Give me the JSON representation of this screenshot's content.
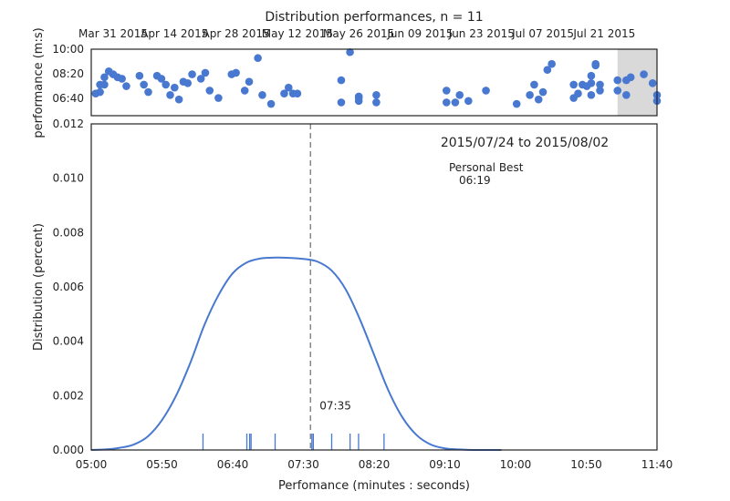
{
  "figure": {
    "title": "Distribution performances, n = 11",
    "colors": {
      "accent": "#4878cf",
      "highlight": "#d9d9d9",
      "median_line": "#808080",
      "axes": "#222222"
    }
  },
  "chart_data": [
    {
      "type": "scatter",
      "ylabel": "performance (m:s)",
      "x_tick_labels": [
        "Mar 31 2015",
        "Apr 14 2015",
        "Apr 28 2015",
        "May 12 2015",
        "May 26 2015",
        "Jun 09 2015",
        "Jun 23 2015",
        "Jul 07 2015",
        "Jul 21 2015"
      ],
      "x_ticks": [
        "2015-03-31",
        "2015-04-14",
        "2015-04-28",
        "2015-05-12",
        "2015-05-26",
        "2015-06-09",
        "2015-06-23",
        "2015-07-07",
        "2015-07-21"
      ],
      "y_tick_labels": [
        "06:40",
        "08:20",
        "10:00"
      ],
      "y_ticks": [
        6.667,
        8.333,
        10.0
      ],
      "xlim": [
        "2015-03-26",
        "2015-08-02"
      ],
      "ylim": [
        5.5,
        10.0
      ],
      "highlight_range": [
        "2015-07-24",
        "2015-08-02"
      ],
      "points": [
        {
          "x": "2015-03-27",
          "y": 7.0
        },
        {
          "x": "2015-03-28",
          "y": 7.1
        },
        {
          "x": "2015-03-29",
          "y": 8.1
        },
        {
          "x": "2015-03-28",
          "y": 7.6
        },
        {
          "x": "2015-03-29",
          "y": 7.6
        },
        {
          "x": "2015-03-30",
          "y": 8.5
        },
        {
          "x": "2015-03-31",
          "y": 8.3
        },
        {
          "x": "2015-04-01",
          "y": 8.1
        },
        {
          "x": "2015-04-02",
          "y": 8.0
        },
        {
          "x": "2015-04-03",
          "y": 7.5
        },
        {
          "x": "2015-04-06",
          "y": 8.2
        },
        {
          "x": "2015-04-07",
          "y": 7.6
        },
        {
          "x": "2015-04-08",
          "y": 7.1
        },
        {
          "x": "2015-04-10",
          "y": 8.2
        },
        {
          "x": "2015-04-11",
          "y": 8.0
        },
        {
          "x": "2015-04-12",
          "y": 7.6
        },
        {
          "x": "2015-04-13",
          "y": 6.9
        },
        {
          "x": "2015-04-14",
          "y": 7.4
        },
        {
          "x": "2015-04-15",
          "y": 6.6
        },
        {
          "x": "2015-04-16",
          "y": 7.8
        },
        {
          "x": "2015-04-17",
          "y": 7.7
        },
        {
          "x": "2015-04-18",
          "y": 8.3
        },
        {
          "x": "2015-04-20",
          "y": 8.0
        },
        {
          "x": "2015-04-22",
          "y": 7.2
        },
        {
          "x": "2015-04-21",
          "y": 8.4
        },
        {
          "x": "2015-04-24",
          "y": 6.7
        },
        {
          "x": "2015-04-27",
          "y": 8.3
        },
        {
          "x": "2015-04-28",
          "y": 8.4
        },
        {
          "x": "2015-04-30",
          "y": 7.2
        },
        {
          "x": "2015-05-01",
          "y": 7.8
        },
        {
          "x": "2015-05-03",
          "y": 9.4
        },
        {
          "x": "2015-05-04",
          "y": 6.9
        },
        {
          "x": "2015-05-06",
          "y": 6.3
        },
        {
          "x": "2015-05-09",
          "y": 7.0
        },
        {
          "x": "2015-05-10",
          "y": 7.4
        },
        {
          "x": "2015-05-11",
          "y": 7.0
        },
        {
          "x": "2015-05-12",
          "y": 7.0
        },
        {
          "x": "2015-05-22",
          "y": 7.9
        },
        {
          "x": "2015-05-22",
          "y": 6.4
        },
        {
          "x": "2015-05-24",
          "y": 9.8
        },
        {
          "x": "2015-05-26",
          "y": 6.5
        },
        {
          "x": "2015-05-26",
          "y": 6.8
        },
        {
          "x": "2015-05-26",
          "y": 6.7
        },
        {
          "x": "2015-05-30",
          "y": 6.9
        },
        {
          "x": "2015-05-30",
          "y": 6.4
        },
        {
          "x": "2015-06-15",
          "y": 7.2
        },
        {
          "x": "2015-06-15",
          "y": 6.4
        },
        {
          "x": "2015-06-17",
          "y": 6.4
        },
        {
          "x": "2015-06-18",
          "y": 6.9
        },
        {
          "x": "2015-06-20",
          "y": 6.5
        },
        {
          "x": "2015-06-24",
          "y": 7.2
        },
        {
          "x": "2015-07-01",
          "y": 6.3
        },
        {
          "x": "2015-07-04",
          "y": 6.9
        },
        {
          "x": "2015-07-05",
          "y": 7.6
        },
        {
          "x": "2015-07-06",
          "y": 6.6
        },
        {
          "x": "2015-07-07",
          "y": 7.1
        },
        {
          "x": "2015-07-08",
          "y": 8.6
        },
        {
          "x": "2015-07-09",
          "y": 9.0
        },
        {
          "x": "2015-07-14",
          "y": 6.7
        },
        {
          "x": "2015-07-14",
          "y": 7.6
        },
        {
          "x": "2015-07-15",
          "y": 7.0
        },
        {
          "x": "2015-07-16",
          "y": 7.6
        },
        {
          "x": "2015-07-17",
          "y": 7.5
        },
        {
          "x": "2015-07-18",
          "y": 6.9
        },
        {
          "x": "2015-07-18",
          "y": 7.7
        },
        {
          "x": "2015-07-18",
          "y": 8.2
        },
        {
          "x": "2015-07-19",
          "y": 9.0
        },
        {
          "x": "2015-07-19",
          "y": 8.9
        },
        {
          "x": "2015-07-20",
          "y": 7.6
        },
        {
          "x": "2015-07-20",
          "y": 7.2
        },
        {
          "x": "2015-07-24",
          "y": 7.9
        },
        {
          "x": "2015-07-24",
          "y": 7.2
        },
        {
          "x": "2015-07-26",
          "y": 6.9
        },
        {
          "x": "2015-07-26",
          "y": 7.9
        },
        {
          "x": "2015-07-27",
          "y": 8.1
        },
        {
          "x": "2015-07-30",
          "y": 8.3
        },
        {
          "x": "2015-08-01",
          "y": 7.7
        },
        {
          "x": "2015-08-02",
          "y": 6.9
        },
        {
          "x": "2015-08-02",
          "y": 6.5
        }
      ]
    },
    {
      "type": "line",
      "title": "2015/07/24 to 2015/08/02",
      "xlabel": "Perfomance (minutes : seconds)",
      "ylabel": "Distribution (percent)",
      "x_tick_labels": [
        "05:00",
        "05:50",
        "06:40",
        "07:30",
        "08:20",
        "09:10",
        "10:00",
        "10:50",
        "11:40"
      ],
      "x_ticks": [
        300,
        350,
        400,
        450,
        500,
        550,
        600,
        650,
        700
      ],
      "y_tick_labels": [
        "0.000",
        "0.002",
        "0.004",
        "0.006",
        "0.008",
        "0.010",
        "0.012"
      ],
      "y_ticks": [
        0.0,
        0.002,
        0.004,
        0.006,
        0.008,
        0.01,
        0.012
      ],
      "xlim": [
        300,
        700
      ],
      "ylim": [
        0.0,
        0.012
      ],
      "series": [
        {
          "x": [
            300,
            310,
            320,
            330,
            340,
            350,
            360,
            370,
            380,
            390,
            400,
            410,
            420,
            430,
            440,
            450,
            460,
            470,
            480,
            490,
            500,
            510,
            520,
            530,
            540,
            550,
            560,
            570,
            580,
            590
          ],
          "values": [
            0.0,
            2e-05,
            8e-05,
            0.0002,
            0.0005,
            0.0011,
            0.002,
            0.0032,
            0.0046,
            0.0057,
            0.0065,
            0.0069,
            0.00705,
            0.00708,
            0.00707,
            0.00703,
            0.00693,
            0.0066,
            0.0059,
            0.0048,
            0.0035,
            0.0022,
            0.0012,
            0.00055,
            0.0002,
            6e-05,
            2e-05,
            0.0,
            0.0,
            0.0
          ]
        }
      ],
      "rug": [
        379,
        410,
        412,
        413,
        430,
        456,
        457,
        470,
        483,
        489,
        507
      ],
      "median": {
        "x": 455,
        "label": "07:35"
      },
      "personal_best": {
        "label": "Personal Best",
        "value": "06:19"
      }
    }
  ]
}
